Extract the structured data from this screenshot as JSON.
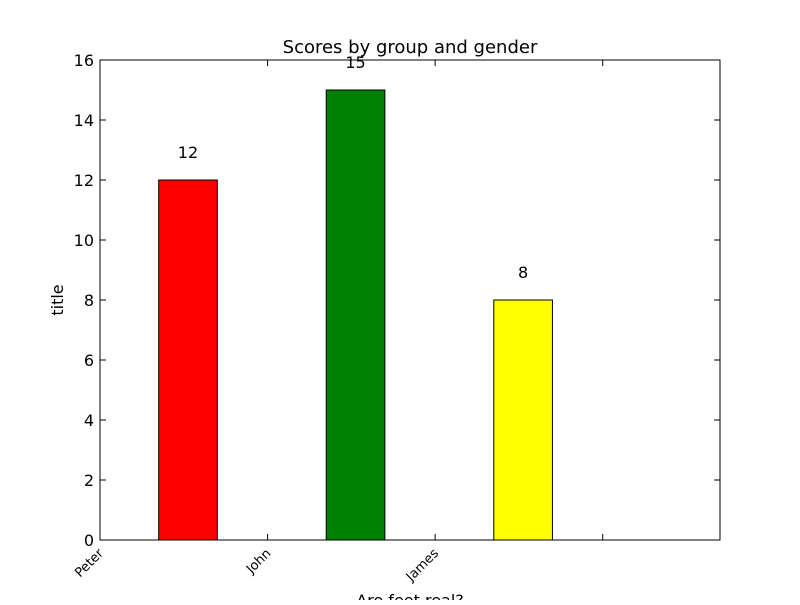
{
  "chart_data": {
    "type": "bar",
    "title": "Scores by group and gender",
    "xlabel": "Are feet real?",
    "ylabel": "title",
    "categories": [
      "Peter",
      "John",
      "James"
    ],
    "values": [
      12,
      15,
      8
    ],
    "data_labels": [
      "12",
      "15",
      "8"
    ],
    "colors": [
      "#ff0000",
      "#008000",
      "#ffff00"
    ],
    "ylim": [
      0,
      16
    ],
    "yticks": [
      0,
      2,
      4,
      6,
      8,
      10,
      12,
      14,
      16
    ],
    "grid": false,
    "legend": "none"
  }
}
